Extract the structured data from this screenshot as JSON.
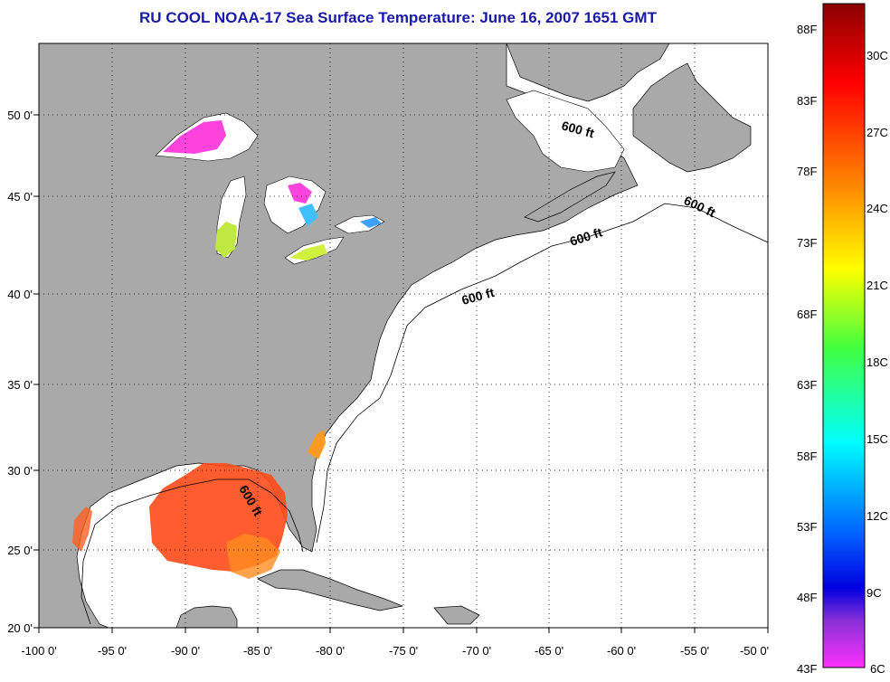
{
  "title": "RU COOL  NOAA-17  Sea Surface Temperature:  June 16, 2007 1651 GMT",
  "map": {
    "lon_ticks": [
      "-100 0'",
      "-95 0'",
      "-90 0'",
      "-85 0'",
      "-80 0'",
      "-75 0'",
      "-70 0'",
      "-65 0'",
      "-60 0'",
      "-55 0'",
      "-50 0'"
    ],
    "lat_ticks": [
      "50 0'",
      "45 0'",
      "40 0'",
      "35 0'",
      "30 0'",
      "25 0'",
      "20 0'"
    ],
    "isobath_labels": [
      "600 ft",
      "600 ft",
      "600 ft",
      "600 ft",
      "600 ft"
    ],
    "colors": {
      "land": "#a9a9a9",
      "ocean": "#ffffff",
      "title": "#1a1aa8"
    }
  },
  "colorbar": {
    "fahrenheit_labels": [
      "88F",
      "83F",
      "78F",
      "73F",
      "68F",
      "63F",
      "58F",
      "53F",
      "48F",
      "43F"
    ],
    "celsius_labels": [
      "30C",
      "27C",
      "24C",
      "21C",
      "18C",
      "15C",
      "12C",
      "9C",
      "6C"
    ]
  }
}
